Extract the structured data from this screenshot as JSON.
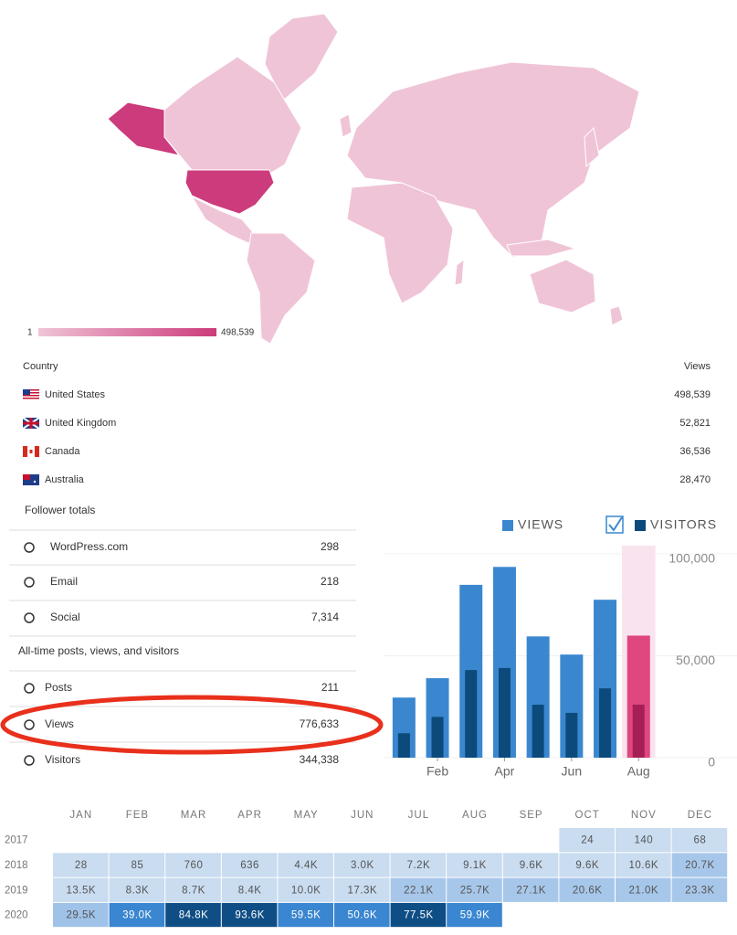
{
  "map": {
    "legend_min": "1",
    "legend_max": "498,539",
    "low_color": "#f0c4d7",
    "high_color": "#cc3b7b"
  },
  "countries": {
    "header": [
      "Country",
      "Views"
    ],
    "rows": [
      [
        "United States",
        "498,539"
      ],
      [
        "United Kingdom",
        "52,821"
      ],
      [
        "Canada",
        "36,536"
      ],
      [
        "Australia",
        "28,470"
      ]
    ]
  },
  "followers": {
    "title": "Follower totals",
    "rows": [
      {
        "label": "WordPress.com",
        "value": "298",
        "color": "#2271b1"
      },
      {
        "label": "Email",
        "value": "218",
        "color": "#2271b1"
      },
      {
        "label": "Social",
        "value": "7,314",
        "color": "#333333"
      }
    ]
  },
  "all_time": {
    "title": "All-time posts, views, and visitors",
    "rows": [
      {
        "label": "Posts",
        "value": "211",
        "color": "#333333"
      },
      {
        "label": "Views",
        "value": "776,633",
        "color": "#333333"
      },
      {
        "label": "Visitors",
        "value": "344,338",
        "color": "#333333"
      }
    ]
  },
  "chart_data": {
    "type": "bar",
    "categories": [
      null,
      "Feb",
      null,
      "Apr",
      null,
      "Jun",
      null,
      "Aug"
    ],
    "series": [
      {
        "name": "VIEWS",
        "color": "#3a87cf",
        "values": [
          29500,
          39000,
          84800,
          93600,
          59500,
          50600,
          77500,
          59900
        ]
      },
      {
        "name": "VISITORS",
        "color": "#0c4a7b",
        "values": [
          12000,
          20000,
          43000,
          44000,
          26000,
          22000,
          34000,
          26000
        ]
      }
    ],
    "highlight": {
      "category": "Aug",
      "bar_colors": [
        "#e0467f",
        "#a51e55"
      ],
      "band_color": "#f9e3ee"
    },
    "ylim": [
      0,
      100000
    ],
    "yticks": [
      0,
      {
        "value": 50000,
        "label": "50,000"
      },
      {
        "value": 100000,
        "label": "100,000"
      }
    ],
    "grid": true
  },
  "heatmap": {
    "months": [
      "JAN",
      "FEB",
      "MAR",
      "APR",
      "MAY",
      "JUN",
      "JUL",
      "AUG",
      "SEP",
      "OCT",
      "NOV",
      "DEC"
    ],
    "rows": [
      {
        "year": "2017",
        "cells": [
          null,
          null,
          null,
          null,
          null,
          null,
          null,
          null,
          null,
          "24",
          "140",
          "68"
        ],
        "colors": [
          null,
          null,
          null,
          null,
          null,
          null,
          null,
          null,
          null,
          "#c9dcf0",
          "#c9dcf0",
          "#c9dcf0"
        ]
      },
      {
        "year": "2018",
        "cells": [
          "28",
          "85",
          "760",
          "636",
          "4.4K",
          "3.0K",
          "7.2K",
          "9.1K",
          "9.6K",
          "9.6K",
          "10.6K",
          "20.7K"
        ],
        "colors": [
          "#c9dcf0",
          "#c9dcf0",
          "#c9dcf0",
          "#c9dcf0",
          "#c9dcf0",
          "#c9dcf0",
          "#c9dcf0",
          "#c9dcf0",
          "#c9dcf0",
          "#c9dcf0",
          "#c9dcf0",
          "#a7c7ea"
        ]
      },
      {
        "year": "2019",
        "cells": [
          "13.5K",
          "8.3K",
          "8.7K",
          "8.4K",
          "10.0K",
          "17.3K",
          "22.1K",
          "25.7K",
          "27.1K",
          "20.6K",
          "21.0K",
          "23.3K"
        ],
        "colors": [
          "#c9dcf0",
          "#c9dcf0",
          "#c9dcf0",
          "#c9dcf0",
          "#c9dcf0",
          "#c9dcf0",
          "#a7c7ea",
          "#a7c7ea",
          "#a7c7ea",
          "#a7c7ea",
          "#a7c7ea",
          "#a7c7ea"
        ]
      },
      {
        "year": "2020",
        "cells": [
          "29.5K",
          "39.0K",
          "84.8K",
          "93.6K",
          "59.5K",
          "50.6K",
          "77.5K",
          "59.9K",
          null,
          null,
          null,
          null
        ],
        "colors": [
          "#9fc2e8",
          "#3a86d0",
          "#0f4e85",
          "#0f4e85",
          "#3a86d0",
          "#3a86d0",
          "#0f4e85",
          "#3a86d0",
          null,
          null,
          null,
          null
        ]
      }
    ]
  }
}
